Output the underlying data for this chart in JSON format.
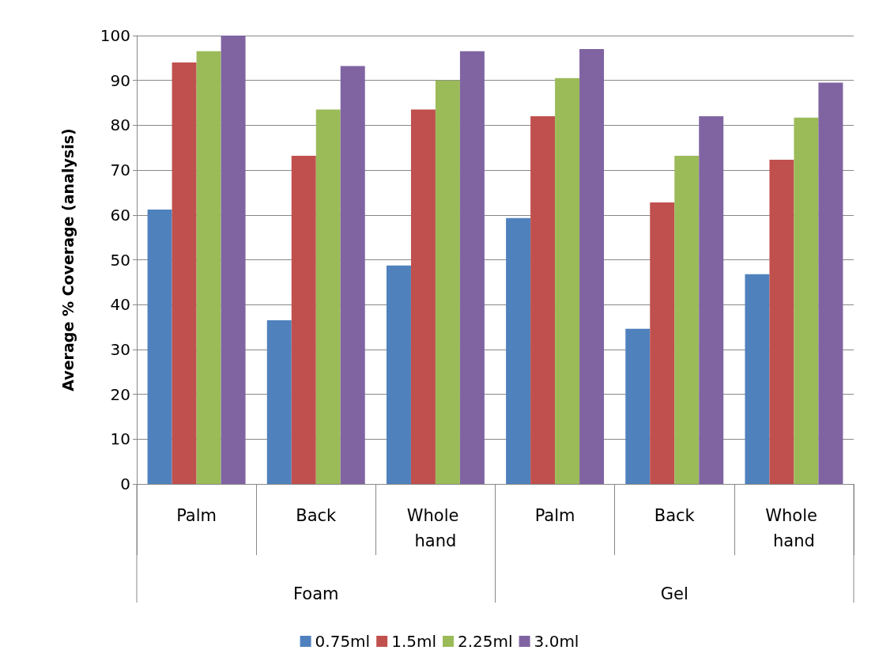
{
  "chart_data": {
    "type": "bar",
    "ylabel": "Average % Coverage (analysis)",
    "categories": [
      "Palm",
      "Back",
      "Whole hand",
      "Palm",
      "Back",
      "Whole hand"
    ],
    "annotations": [
      "Foam",
      "Gel"
    ],
    "series": [
      {
        "name": "0.75ml",
        "color": "#4f81bd",
        "values": [
          61.2,
          36.5,
          48.7,
          59.3,
          34.6,
          46.8
        ]
      },
      {
        "name": "1.5ml",
        "color": "#c0504d",
        "values": [
          94,
          73.2,
          83.5,
          82,
          62.8,
          72.3
        ]
      },
      {
        "name": "2.25ml",
        "color": "#9bbb59",
        "values": [
          96.5,
          83.5,
          90,
          90.5,
          73.2,
          81.7
        ]
      },
      {
        "name": "3.0ml",
        "color": "#8064a2",
        "values": [
          100,
          93.2,
          96.5,
          97,
          82,
          89.5
        ]
      }
    ],
    "ylim": [
      0,
      100
    ],
    "yticks": [
      0,
      10,
      20,
      30,
      40,
      50,
      60,
      70,
      80,
      90,
      100
    ],
    "grid": "y",
    "legend": "bottom"
  }
}
